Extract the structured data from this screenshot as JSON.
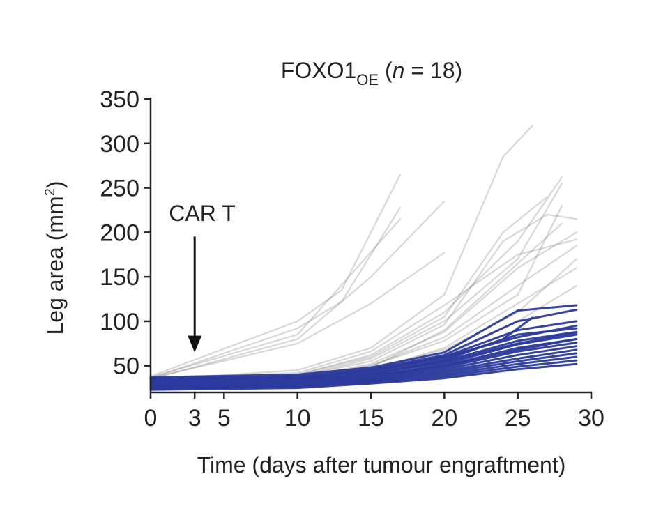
{
  "chart_data": {
    "type": "line",
    "title": {
      "main": "FOXO1",
      "subscript": "OE",
      "rest_open": " (",
      "n_italic": "n",
      "rest_close": " = 18)"
    },
    "xlabel": "Time (days after tumour engraftment)",
    "ylabel": {
      "main": "Leg area (mm",
      "superscript": "2",
      "close": ")"
    },
    "xlim": [
      0,
      30
    ],
    "ylim": [
      20,
      350
    ],
    "xticks": [
      0,
      3,
      5,
      10,
      15,
      20,
      25,
      30
    ],
    "yticks": [
      50,
      100,
      150,
      200,
      250,
      300,
      350
    ],
    "annotation": {
      "text": "CAR T",
      "x": 3,
      "arrow_from_y": 200,
      "arrow_to_y": 65
    },
    "colors": {
      "control": "#8a8a8a",
      "foxo1": "#2b3a9c",
      "axis": "#222222"
    },
    "series": [
      {
        "group": "control",
        "x": [
          0,
          10,
          13,
          17
        ],
        "y": [
          38,
          100,
          135,
          265
        ]
      },
      {
        "group": "control",
        "x": [
          0,
          10,
          13,
          17
        ],
        "y": [
          36,
          92,
          122,
          228
        ]
      },
      {
        "group": "control",
        "x": [
          0,
          10,
          17
        ],
        "y": [
          37,
          85,
          215
        ]
      },
      {
        "group": "control",
        "x": [
          0,
          10,
          15,
          20
        ],
        "y": [
          35,
          80,
          150,
          235
        ]
      },
      {
        "group": "control",
        "x": [
          0,
          10,
          15,
          20
        ],
        "y": [
          36,
          75,
          120,
          177
        ]
      },
      {
        "group": "control",
        "x": [
          0,
          10,
          15,
          20,
          24,
          26
        ],
        "y": [
          34,
          45,
          70,
          130,
          285,
          320
        ]
      },
      {
        "group": "control",
        "x": [
          0,
          10,
          15,
          20,
          25,
          28
        ],
        "y": [
          33,
          40,
          62,
          110,
          190,
          262
        ]
      },
      {
        "group": "control",
        "x": [
          0,
          10,
          15,
          20,
          25,
          28
        ],
        "y": [
          32,
          38,
          58,
          100,
          170,
          255
        ]
      },
      {
        "group": "control",
        "x": [
          0,
          10,
          15,
          20,
          24,
          27,
          29
        ],
        "y": [
          34,
          38,
          55,
          96,
          190,
          220,
          215
        ]
      },
      {
        "group": "control",
        "x": [
          0,
          10,
          15,
          20,
          25,
          29
        ],
        "y": [
          35,
          42,
          66,
          118,
          175,
          192
        ]
      },
      {
        "group": "control",
        "x": [
          0,
          10,
          15,
          20,
          25,
          29
        ],
        "y": [
          31,
          36,
          52,
          88,
          160,
          200
        ]
      },
      {
        "group": "control",
        "x": [
          0,
          10,
          15,
          20,
          25,
          29
        ],
        "y": [
          33,
          37,
          50,
          82,
          140,
          185
        ]
      },
      {
        "group": "control",
        "x": [
          0,
          10,
          15,
          20,
          25,
          28
        ],
        "y": [
          32,
          35,
          48,
          90,
          165,
          210
        ]
      },
      {
        "group": "control",
        "x": [
          0,
          10,
          15,
          20,
          25,
          29
        ],
        "y": [
          30,
          33,
          45,
          70,
          120,
          160
        ]
      },
      {
        "group": "control",
        "x": [
          0,
          10,
          15,
          20,
          25,
          29
        ],
        "y": [
          29,
          32,
          42,
          60,
          100,
          140
        ]
      },
      {
        "group": "control",
        "x": [
          0,
          10,
          15,
          20,
          25,
          28
        ],
        "y": [
          31,
          35,
          50,
          78,
          130,
          230
        ]
      },
      {
        "group": "control",
        "x": [
          0,
          10,
          15,
          20,
          25,
          29
        ],
        "y": [
          30,
          34,
          46,
          68,
          110,
          170
        ]
      },
      {
        "group": "control",
        "x": [
          0,
          10,
          15,
          20,
          24,
          27
        ],
        "y": [
          34,
          40,
          60,
          105,
          200,
          240
        ]
      },
      {
        "group": "foxo1",
        "x": [
          0,
          10,
          15,
          20,
          25,
          29
        ],
        "y": [
          37,
          40,
          48,
          65,
          112,
          118
        ]
      },
      {
        "group": "foxo1",
        "x": [
          0,
          10,
          15,
          20,
          25,
          29
        ],
        "y": [
          36,
          38,
          46,
          62,
          100,
          113
        ]
      },
      {
        "group": "foxo1",
        "x": [
          0,
          10,
          15,
          20,
          25,
          29
        ],
        "y": [
          35,
          37,
          44,
          60,
          90,
          100
        ]
      },
      {
        "group": "foxo1",
        "x": [
          0,
          10,
          15,
          20,
          25,
          29
        ],
        "y": [
          34,
          36,
          42,
          58,
          85,
          92
        ]
      },
      {
        "group": "foxo1",
        "x": [
          0,
          10,
          15,
          20,
          24,
          26
        ],
        "y": [
          33,
          35,
          40,
          56,
          80,
          104
        ]
      },
      {
        "group": "foxo1",
        "x": [
          0,
          10,
          15,
          20,
          25,
          29
        ],
        "y": [
          32,
          34,
          40,
          55,
          78,
          88
        ]
      },
      {
        "group": "foxo1",
        "x": [
          0,
          10,
          15,
          20,
          25,
          29
        ],
        "y": [
          31,
          33,
          38,
          52,
          74,
          85
        ]
      },
      {
        "group": "foxo1",
        "x": [
          0,
          10,
          15,
          20,
          25,
          29
        ],
        "y": [
          30,
          32,
          37,
          50,
          70,
          80
        ]
      },
      {
        "group": "foxo1",
        "x": [
          0,
          10,
          15,
          20,
          25,
          29
        ],
        "y": [
          29,
          31,
          36,
          48,
          66,
          76
        ]
      },
      {
        "group": "foxo1",
        "x": [
          0,
          10,
          15,
          20,
          25,
          29
        ],
        "y": [
          28,
          30,
          35,
          46,
          62,
          72
        ]
      },
      {
        "group": "foxo1",
        "x": [
          0,
          10,
          15,
          20,
          25,
          29
        ],
        "y": [
          27,
          29,
          34,
          44,
          58,
          68
        ]
      },
      {
        "group": "foxo1",
        "x": [
          0,
          10,
          15,
          20,
          25,
          29
        ],
        "y": [
          26,
          28,
          33,
          42,
          55,
          64
        ]
      },
      {
        "group": "foxo1",
        "x": [
          0,
          10,
          15,
          20,
          25,
          29
        ],
        "y": [
          25,
          27,
          32,
          40,
          52,
          60
        ]
      },
      {
        "group": "foxo1",
        "x": [
          0,
          10,
          15,
          20,
          25,
          29
        ],
        "y": [
          24,
          26,
          31,
          38,
          49,
          56
        ]
      },
      {
        "group": "foxo1",
        "x": [
          0,
          10,
          15,
          20,
          25,
          29
        ],
        "y": [
          23,
          25,
          30,
          36,
          46,
          52
        ]
      },
      {
        "group": "foxo1",
        "x": [
          0,
          10,
          15,
          20,
          25,
          29
        ],
        "y": [
          30,
          36,
          45,
          60,
          82,
          95
        ]
      },
      {
        "group": "foxo1",
        "x": [
          0,
          10,
          15,
          20,
          25,
          29
        ],
        "y": [
          28,
          33,
          41,
          54,
          75,
          87
        ]
      },
      {
        "group": "foxo1",
        "x": [
          0,
          10,
          15,
          20,
          25,
          29
        ],
        "y": [
          26,
          30,
          38,
          50,
          68,
          80
        ]
      }
    ]
  }
}
